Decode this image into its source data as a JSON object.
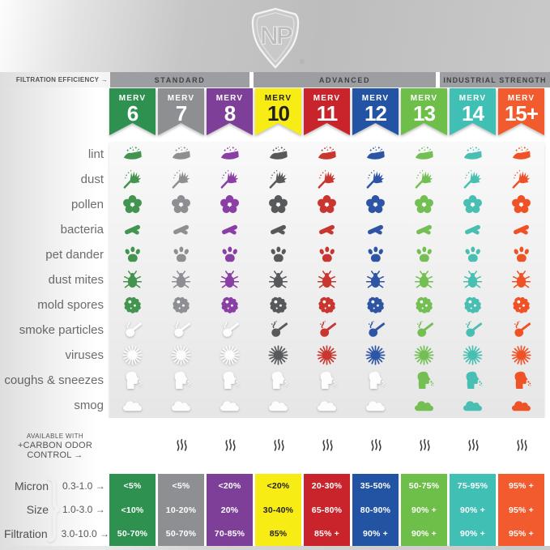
{
  "brand": {
    "initials": "NP",
    "registered_mark": "®"
  },
  "header": {
    "efficiency_label": "FILTRATION EFFICIENCY →",
    "groups": [
      {
        "label": "STANDARD",
        "columns": 3
      },
      {
        "label": "ADVANCED",
        "columns": 4
      },
      {
        "label": "INDUSTRIAL STRENGTH",
        "columns": 2
      }
    ]
  },
  "columns": [
    {
      "name": "MERV 6",
      "merv_word": "MERV",
      "rating": "6",
      "color": "#2e9150",
      "icon_color": "#43944f",
      "label_color": "#ffffff"
    },
    {
      "name": "MERV 7",
      "merv_word": "MERV",
      "rating": "7",
      "color": "#8d8f92",
      "icon_color": "#8d8f92",
      "label_color": "#ffffff"
    },
    {
      "name": "MERV 8",
      "merv_word": "MERV",
      "rating": "8",
      "color": "#7e3f98",
      "icon_color": "#8a3fa5",
      "label_color": "#ffffff"
    },
    {
      "name": "MERV 10",
      "merv_word": "MERV",
      "rating": "10",
      "color": "#f7ec13",
      "icon_color": "#58595b",
      "label_color": "#231f20"
    },
    {
      "name": "MERV 11",
      "merv_word": "MERV",
      "rating": "11",
      "color": "#c9242b",
      "icon_color": "#c9352f",
      "label_color": "#ffffff"
    },
    {
      "name": "MERV 12",
      "merv_word": "MERV",
      "rating": "12",
      "color": "#2254a3",
      "icon_color": "#2e55a5",
      "label_color": "#ffffff"
    },
    {
      "name": "MERV 13",
      "merv_word": "MERV",
      "rating": "13",
      "color": "#6ebf49",
      "icon_color": "#74bf54",
      "label_color": "#ffffff"
    },
    {
      "name": "MERV 14",
      "merv_word": "MERV",
      "rating": "14",
      "color": "#40bfb4",
      "icon_color": "#48bfb2",
      "label_color": "#ffffff"
    },
    {
      "name": "MERV 15+",
      "merv_word": "MERV",
      "rating": "15+",
      "color": "#f15b2d",
      "icon_color": "#ef5226",
      "label_color": "#ffffff"
    }
  ],
  "rows": [
    {
      "label": "lint",
      "icon_key": "lint",
      "filtered": [
        1,
        1,
        1,
        1,
        1,
        1,
        1,
        1,
        1
      ]
    },
    {
      "label": "dust",
      "icon_key": "dust",
      "filtered": [
        1,
        1,
        1,
        1,
        1,
        1,
        1,
        1,
        1
      ]
    },
    {
      "label": "pollen",
      "icon_key": "pollen",
      "filtered": [
        1,
        1,
        1,
        1,
        1,
        1,
        1,
        1,
        1
      ]
    },
    {
      "label": "bacteria",
      "icon_key": "bacteria",
      "filtered": [
        1,
        1,
        1,
        1,
        1,
        1,
        1,
        1,
        1
      ]
    },
    {
      "label": "pet dander",
      "icon_key": "paw",
      "filtered": [
        1,
        1,
        1,
        1,
        1,
        1,
        1,
        1,
        1
      ]
    },
    {
      "label": "dust mites",
      "icon_key": "mite",
      "filtered": [
        1,
        1,
        1,
        1,
        1,
        1,
        1,
        1,
        1
      ]
    },
    {
      "label": "mold spores",
      "icon_key": "mold",
      "filtered": [
        1,
        1,
        1,
        1,
        1,
        1,
        1,
        1,
        1
      ]
    },
    {
      "label": "smoke particles",
      "icon_key": "pipe",
      "filtered": [
        0,
        0,
        0,
        1,
        1,
        1,
        1,
        1,
        1
      ]
    },
    {
      "label": "viruses",
      "icon_key": "virus",
      "filtered": [
        0,
        0,
        0,
        1,
        1,
        1,
        1,
        1,
        1
      ]
    },
    {
      "label": "coughs & sneezes",
      "icon_key": "cough",
      "filtered": [
        0,
        0,
        0,
        0,
        0,
        0,
        1,
        1,
        1
      ]
    },
    {
      "label": "smog",
      "icon_key": "cloud",
      "filtered": [
        0,
        0,
        0,
        0,
        0,
        0,
        1,
        1,
        1
      ]
    }
  ],
  "carbon_row": {
    "line1": "AVAILABLE WITH",
    "line2": "+CARBON ODOR CONTROL →",
    "available": [
      0,
      1,
      1,
      1,
      1,
      1,
      1,
      1,
      1
    ]
  },
  "efficiency_table": {
    "row_headers": [
      {
        "label": "Micron",
        "range": "0.3-1.0 →"
      },
      {
        "label": "Size",
        "range": "1.0-3.0 →"
      },
      {
        "label": "Filtration",
        "range": "3.0-10.0 →"
      }
    ],
    "values_by_column": [
      [
        "<5%",
        "<10%",
        "50-70%"
      ],
      [
        "<5%",
        "10-20%",
        "50-70%"
      ],
      [
        "<20%",
        "20%",
        "70-85%"
      ],
      [
        "<20%",
        "30-40%",
        "85%"
      ],
      [
        "20-30%",
        "65-80%",
        "85% +"
      ],
      [
        "35-50%",
        "80-90%",
        "90% +"
      ],
      [
        "50-75%",
        "90% +",
        "90% +"
      ],
      [
        "75-95%",
        "90% +",
        "90% +"
      ],
      [
        "95% +",
        "95% +",
        "95% +"
      ]
    ]
  },
  "chart_data": {
    "type": "table",
    "title": "Filtration efficiency by MERV rating",
    "column_groups": [
      {
        "label": "STANDARD",
        "columns": [
          "MERV 6",
          "MERV 7",
          "MERV 8"
        ]
      },
      {
        "label": "ADVANCED",
        "columns": [
          "MERV 10",
          "MERV 11",
          "MERV 12",
          "MERV 13"
        ]
      },
      {
        "label": "INDUSTRIAL STRENGTH",
        "columns": [
          "MERV 14",
          "MERV 15+"
        ]
      }
    ],
    "columns": [
      "MERV 6",
      "MERV 7",
      "MERV 8",
      "MERV 10",
      "MERV 11",
      "MERV 12",
      "MERV 13",
      "MERV 14",
      "MERV 15+"
    ],
    "particles_filtered": {
      "lint": [
        true,
        true,
        true,
        true,
        true,
        true,
        true,
        true,
        true
      ],
      "dust": [
        true,
        true,
        true,
        true,
        true,
        true,
        true,
        true,
        true
      ],
      "pollen": [
        true,
        true,
        true,
        true,
        true,
        true,
        true,
        true,
        true
      ],
      "bacteria": [
        true,
        true,
        true,
        true,
        true,
        true,
        true,
        true,
        true
      ],
      "pet dander": [
        true,
        true,
        true,
        true,
        true,
        true,
        true,
        true,
        true
      ],
      "dust mites": [
        true,
        true,
        true,
        true,
        true,
        true,
        true,
        true,
        true
      ],
      "mold spores": [
        true,
        true,
        true,
        true,
        true,
        true,
        true,
        true,
        true
      ],
      "smoke particles": [
        false,
        false,
        false,
        true,
        true,
        true,
        true,
        true,
        true
      ],
      "viruses": [
        false,
        false,
        false,
        true,
        true,
        true,
        true,
        true,
        true
      ],
      "coughs & sneezes": [
        false,
        false,
        false,
        false,
        false,
        false,
        true,
        true,
        true
      ],
      "smog": [
        false,
        false,
        false,
        false,
        false,
        false,
        true,
        true,
        true
      ]
    },
    "carbon_odor_control_available": [
      false,
      true,
      true,
      true,
      true,
      true,
      true,
      true,
      true
    ],
    "efficiency_rows": [
      {
        "particle_size": "Micron 0.3-1.0",
        "values": [
          "<5%",
          "<5%",
          "<20%",
          "<20%",
          "20-30%",
          "35-50%",
          "50-75%",
          "75-95%",
          "95% +"
        ]
      },
      {
        "particle_size": "Size 1.0-3.0",
        "values": [
          "<10%",
          "10-20%",
          "20%",
          "30-40%",
          "65-80%",
          "80-90%",
          "90% +",
          "90% +",
          "95% +"
        ]
      },
      {
        "particle_size": "Filtration 3.0-10.0",
        "values": [
          "50-70%",
          "50-70%",
          "70-85%",
          "85%",
          "85% +",
          "90% +",
          "90% +",
          "90% +",
          "95% +"
        ]
      }
    ]
  }
}
